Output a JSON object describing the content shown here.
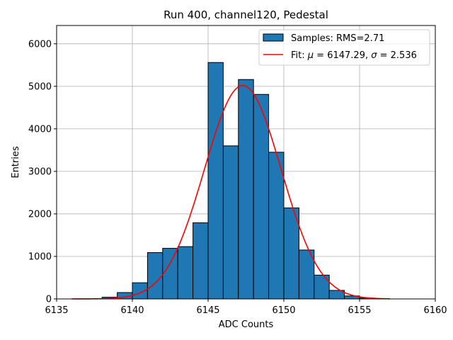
{
  "chart_data": {
    "type": "bar",
    "title": "Run 400, channel120, Pedestal",
    "xlabel": "ADC Counts",
    "ylabel": "Entries",
    "xlim": [
      6135,
      6160
    ],
    "ylim": [
      0,
      6430
    ],
    "xticks": [
      6135,
      6140,
      6145,
      6150,
      6155,
      6160
    ],
    "yticks": [
      0,
      1000,
      2000,
      3000,
      4000,
      5000,
      6000
    ],
    "grid": true,
    "legend_position": "top-right",
    "bar_color": "#1f77b4",
    "bar_edge_color": "#000000",
    "fit_color": "#ff0000",
    "bins": [
      {
        "left": 6137,
        "right": 6138,
        "value": 0
      },
      {
        "left": 6138,
        "right": 6139,
        "value": 40
      },
      {
        "left": 6139,
        "right": 6140,
        "value": 150
      },
      {
        "left": 6140,
        "right": 6141,
        "value": 380
      },
      {
        "left": 6141,
        "right": 6142,
        "value": 1090
      },
      {
        "left": 6142,
        "right": 6143,
        "value": 1190
      },
      {
        "left": 6143,
        "right": 6144,
        "value": 1230
      },
      {
        "left": 6144,
        "right": 6145,
        "value": 1790
      },
      {
        "left": 6145,
        "right": 6146,
        "value": 5560
      },
      {
        "left": 6146,
        "right": 6147,
        "value": 3600
      },
      {
        "left": 6147,
        "right": 6148,
        "value": 5160
      },
      {
        "left": 6148,
        "right": 6149,
        "value": 4810
      },
      {
        "left": 6149,
        "right": 6150,
        "value": 3450
      },
      {
        "left": 6150,
        "right": 6151,
        "value": 2140
      },
      {
        "left": 6151,
        "right": 6152,
        "value": 1150
      },
      {
        "left": 6152,
        "right": 6153,
        "value": 560
      },
      {
        "left": 6153,
        "right": 6154,
        "value": 200
      },
      {
        "left": 6154,
        "right": 6155,
        "value": 70
      },
      {
        "left": 6155,
        "right": 6156,
        "value": 20
      }
    ],
    "fit": {
      "mu": 6147.29,
      "sigma": 2.536,
      "amplitude": 5020,
      "range": [
        6136,
        6157
      ]
    },
    "legend": {
      "samples_label": "Samples: RMS=2.71",
      "fit_prefix": "Fit: ",
      "mu_symbol": "μ",
      "mu_text": " = 6147.29, ",
      "sigma_symbol": "σ",
      "sigma_text": " = 2.536"
    }
  }
}
